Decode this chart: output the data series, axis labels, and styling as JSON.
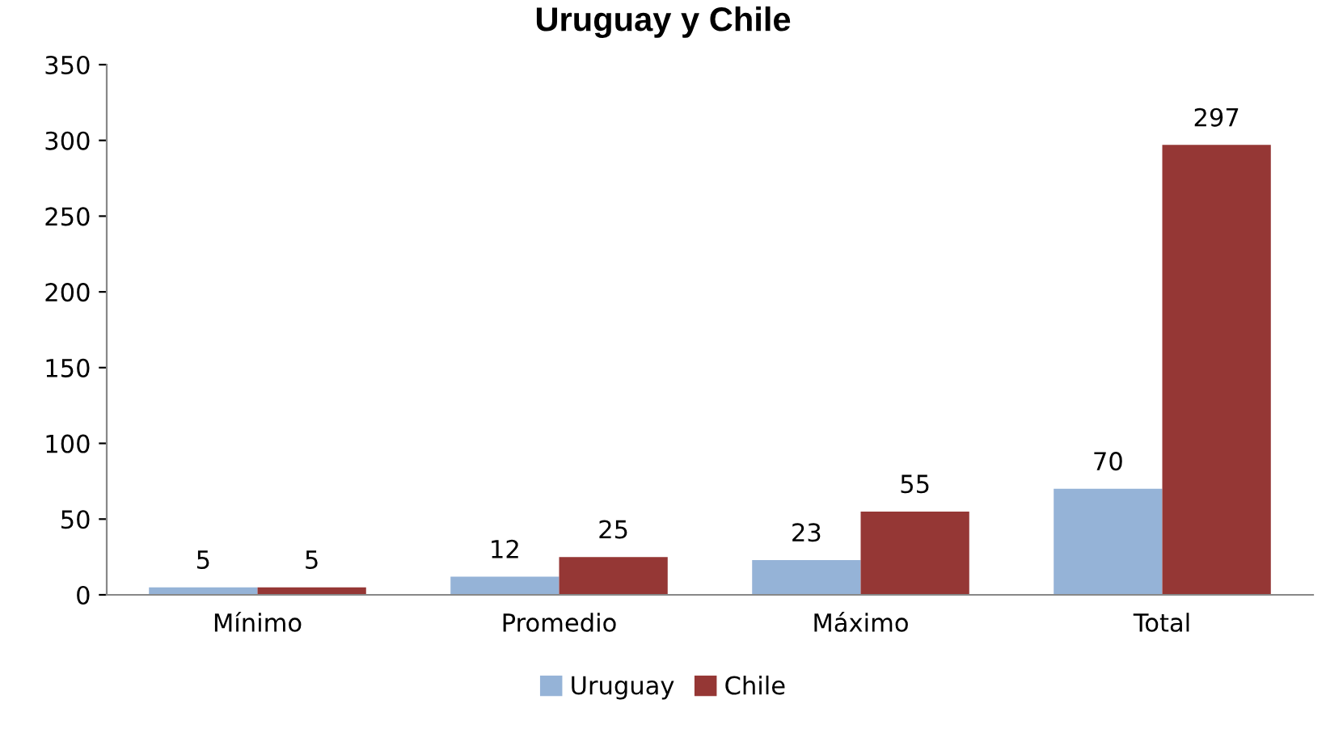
{
  "chart_data": {
    "type": "bar",
    "title": "Uruguay y Chile",
    "categories": [
      "Mínimo",
      "Promedio",
      "Máximo",
      "Total"
    ],
    "series": [
      {
        "name": "Uruguay",
        "color": "#95b3d7",
        "values": [
          5,
          12,
          23,
          70
        ]
      },
      {
        "name": "Chile",
        "color": "#953735",
        "values": [
          5,
          25,
          55,
          297
        ]
      }
    ],
    "ylim": [
      0,
      350
    ],
    "yticks": [
      0,
      50,
      100,
      150,
      200,
      250,
      300,
      350
    ],
    "data_labels": true,
    "grid": false,
    "legend": "bottom"
  }
}
